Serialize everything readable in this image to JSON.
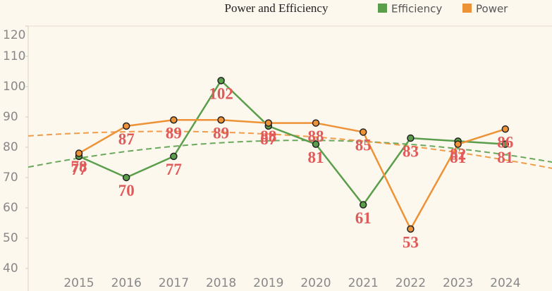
{
  "chart_data": {
    "type": "line",
    "title": "Power and Efficiency",
    "categories": [
      "2015",
      "2016",
      "2017",
      "2018",
      "2019",
      "2020",
      "2021",
      "2022",
      "2023",
      "2024"
    ],
    "series": [
      {
        "name": "Efficiency",
        "color": "#5a9e4b",
        "values": [
          77,
          70,
          77,
          102,
          87,
          81,
          61,
          83,
          82,
          81
        ]
      },
      {
        "name": "Power",
        "color": "#ee9238",
        "values": [
          78,
          87,
          89,
          89,
          88,
          88,
          85,
          53,
          81,
          86
        ]
      }
    ],
    "ylim": [
      33,
      120
    ],
    "yticks": [
      40,
      50,
      60,
      70,
      80,
      90,
      100,
      110,
      120
    ],
    "grid": false
  }
}
